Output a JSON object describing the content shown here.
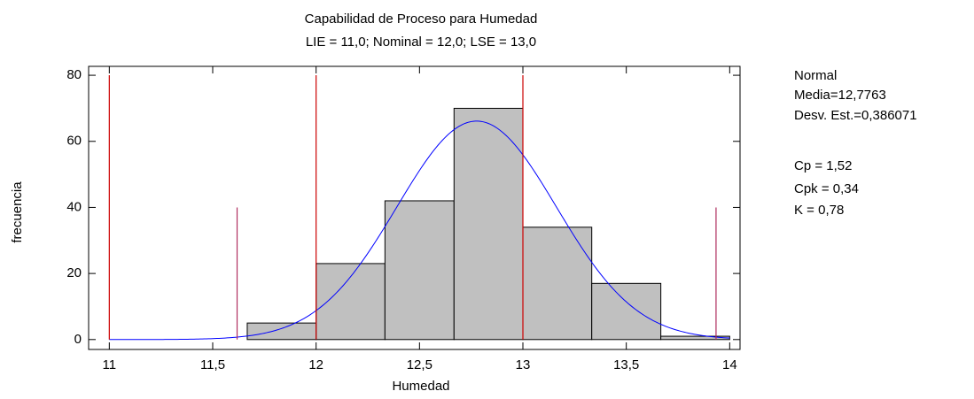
{
  "chart_data": {
    "type": "histogram",
    "title": "Capabilidad de Proceso para  Humedad",
    "subtitle": "LIE = 11,0; Nominal = 12,0; LSE = 13,0",
    "x_label": "Humedad",
    "y_label": "frecuencia",
    "bins": [
      11,
      11.333,
      11.667,
      12,
      12.333,
      12.667,
      13,
      13.333,
      13.667,
      14
    ],
    "values": [
      0,
      0,
      5,
      23,
      42,
      70,
      34,
      17,
      1
    ],
    "color": "#c0c0c0",
    "spec_lines": [
      11,
      12,
      13
    ],
    "spec_color": "#cc0000",
    "sigma_lines": [
      11.618,
      13.934
    ],
    "sigma_height": 40,
    "sigma_color": "#b03060",
    "curve": {
      "mean": 12.7763,
      "sd": 0.386071,
      "color": "#0000ff"
    },
    "xlim": [
      10.9,
      14.05
    ],
    "ylim": [
      -3,
      82.7
    ],
    "xticks": [
      {
        "value": 11,
        "label": "11"
      },
      {
        "value": 11.5,
        "label": "11,5"
      },
      {
        "value": 12,
        "label": "12"
      },
      {
        "value": 12.5,
        "label": "12,5"
      },
      {
        "value": 13,
        "label": "13"
      },
      {
        "value": 13.5,
        "label": "13,5"
      },
      {
        "value": 14,
        "label": "14"
      }
    ],
    "yticks": [
      0,
      20,
      40,
      60,
      80
    ],
    "stats": [
      "Normal",
      "Media=12,7763",
      "Desv. Est.=0,386071",
      "Cp = 1,52",
      "Cpk = 0,34",
      "K = 0,78"
    ]
  }
}
